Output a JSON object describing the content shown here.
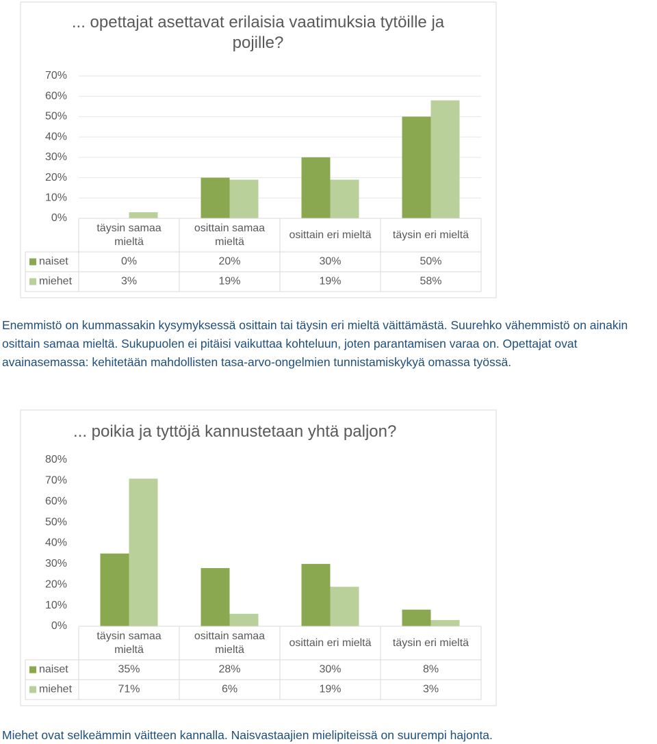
{
  "chart_data": [
    {
      "type": "bar",
      "title": "... opettajat asettavat erilaisia vaatimuksia tytöille ja pojille?",
      "categories": [
        "täysin samaa mieltä",
        "osittain samaa mieltä",
        "osittain eri mieltä",
        "täysin eri mieltä"
      ],
      "series": [
        {
          "name": "naiset",
          "color": "#8aa84f",
          "values": [
            0,
            20,
            30,
            50
          ],
          "value_labels": [
            "0%",
            "20%",
            "30%",
            "50%"
          ]
        },
        {
          "name": "miehet",
          "color": "#b9d09a",
          "values": [
            3,
            19,
            19,
            58
          ],
          "value_labels": [
            "3%",
            "19%",
            "19%",
            "58%"
          ]
        }
      ],
      "ylim": [
        0,
        70
      ],
      "yticks": [
        {
          "value": 0,
          "label": "0%"
        },
        {
          "value": 10,
          "label": "10%"
        },
        {
          "value": 20,
          "label": "20%"
        },
        {
          "value": 30,
          "label": "30%"
        },
        {
          "value": 40,
          "label": "40%"
        },
        {
          "value": 50,
          "label": "50%"
        },
        {
          "value": 60,
          "label": "60%"
        },
        {
          "value": 70,
          "label": "70%"
        }
      ],
      "grid": true
    },
    {
      "type": "bar",
      "title": "... poikia ja tyttöjä kannustetaan yhtä paljon?",
      "categories": [
        "täysin samaa mieltä",
        "osittain samaa mieltä",
        "osittain eri mieltä",
        "täysin eri mieltä"
      ],
      "series": [
        {
          "name": "naiset",
          "color": "#8aa84f",
          "values": [
            35,
            28,
            30,
            8
          ],
          "value_labels": [
            "35%",
            "28%",
            "30%",
            "8%"
          ]
        },
        {
          "name": "miehet",
          "color": "#b9d09a",
          "values": [
            71,
            6,
            19,
            3
          ],
          "value_labels": [
            "71%",
            "6%",
            "19%",
            "3%"
          ]
        }
      ],
      "ylim": [
        0,
        80
      ],
      "yticks": [
        {
          "value": 0,
          "label": "0%"
        },
        {
          "value": 10,
          "label": "10%"
        },
        {
          "value": 20,
          "label": "20%"
        },
        {
          "value": 30,
          "label": "30%"
        },
        {
          "value": 40,
          "label": "40%"
        },
        {
          "value": 50,
          "label": "50%"
        },
        {
          "value": 60,
          "label": "60%"
        },
        {
          "value": 70,
          "label": "70%"
        },
        {
          "value": 80,
          "label": "80%"
        }
      ],
      "grid": false
    }
  ],
  "paragraphs": [
    "Enemmistö on kummassakin kysymyksessä osittain tai täysin eri mieltä väittämästä. Suurehko vähemmistö on ainakin osittain samaa mieltä. Sukupuolen ei pitäisi vaikuttaa kohteluun, joten parantamisen varaa on. Opettajat ovat avainasemassa: kehitetään mahdollisten tasa-arvo-ongelmien tunnistamiskykyä omassa työssä.",
    "Miehet ovat selkeämmin väitteen kannalla. Naisvastaajien mielipiteissä on suurempi hajonta."
  ]
}
